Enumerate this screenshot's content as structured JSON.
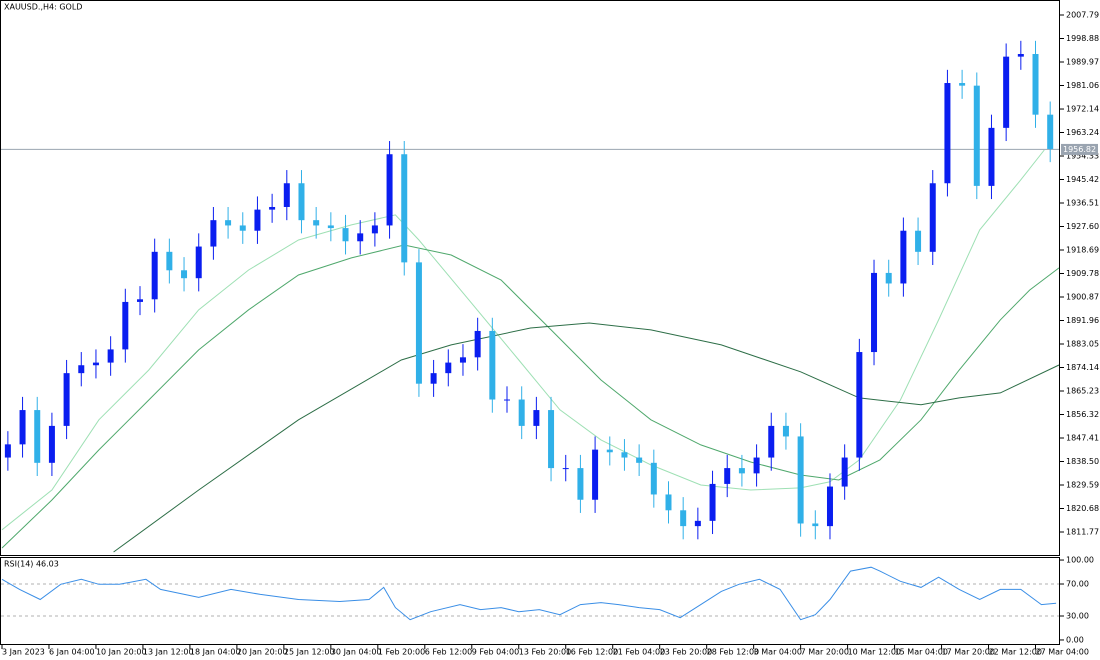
{
  "chart_data": {
    "type": "candlestick",
    "title": "XAUUSD.,H4: GOLD",
    "up_color": "#0a1ef0",
    "down_color": "#30b0e8",
    "x": [
      2,
      7,
      12,
      17,
      22,
      27,
      32,
      37,
      42,
      47,
      52,
      57,
      62,
      67,
      72,
      77,
      82,
      87,
      92,
      97,
      102,
      107,
      112,
      117,
      122,
      127,
      132,
      137,
      142,
      147,
      152,
      157,
      162,
      167,
      172,
      177,
      182,
      187,
      192,
      197,
      202,
      207,
      212,
      217,
      222,
      227,
      232,
      237,
      242,
      247,
      252,
      257,
      262,
      267,
      272,
      277,
      282,
      287,
      292,
      297,
      302,
      307,
      312,
      317,
      322,
      327,
      332,
      337,
      342,
      347,
      352,
      357
    ],
    "open": [
      1840,
      1845,
      1858,
      1838,
      1852,
      1872,
      1875,
      1876,
      1881,
      1899,
      1900,
      1918,
      1911,
      1908,
      1920,
      1930,
      1928,
      1926,
      1934,
      1935,
      1944,
      1930,
      1928,
      1927,
      1922,
      1925,
      1928,
      1955,
      1914,
      1868,
      1872,
      1876,
      1878,
      1888,
      1862,
      1862,
      1852,
      1858,
      1836,
      1836,
      1824,
      1843,
      1842,
      1840,
      1838,
      1826,
      1820,
      1814,
      1816,
      1830,
      1836,
      1834,
      1840,
      1852,
      1848,
      1815,
      1814,
      1829,
      1840,
      1880,
      1910,
      1906,
      1926,
      1918,
      1944,
      1982,
      1981,
      1943,
      1965,
      1992,
      1993,
      1970
    ],
    "high": [
      1850,
      1863,
      1863,
      1857,
      1877,
      1880,
      1881,
      1886,
      1904,
      1905,
      1923,
      1923,
      1916,
      1925,
      1935,
      1935,
      1933,
      1939,
      1940,
      1949,
      1949,
      1935,
      1933,
      1932,
      1930,
      1933,
      1960,
      1960,
      1919,
      1877,
      1881,
      1883,
      1893,
      1893,
      1867,
      1867,
      1863,
      1863,
      1841,
      1841,
      1848,
      1848,
      1847,
      1845,
      1843,
      1831,
      1825,
      1821,
      1835,
      1841,
      1841,
      1845,
      1857,
      1857,
      1853,
      1820,
      1834,
      1845,
      1885,
      1915,
      1915,
      1931,
      1931,
      1949,
      1987,
      1987,
      1986,
      1970,
      1997,
      1998,
      1998,
      1975
    ],
    "low": [
      1835,
      1840,
      1833,
      1833,
      1847,
      1867,
      1870,
      1871,
      1876,
      1894,
      1895,
      1906,
      1903,
      1903,
      1915,
      1923,
      1921,
      1921,
      1929,
      1930,
      1925,
      1923,
      1922,
      1917,
      1917,
      1920,
      1923,
      1909,
      1863,
      1863,
      1867,
      1871,
      1873,
      1857,
      1857,
      1847,
      1847,
      1831,
      1831,
      1819,
      1819,
      1837,
      1835,
      1833,
      1821,
      1815,
      1809,
      1809,
      1811,
      1825,
      1829,
      1829,
      1835,
      1843,
      1810,
      1809,
      1809,
      1824,
      1835,
      1875,
      1901,
      1901,
      1913,
      1913,
      1939,
      1976,
      1938,
      1938,
      1960,
      1987,
      1965,
      1952
    ],
    "close": [
      1845,
      1858,
      1838,
      1852,
      1872,
      1875,
      1876,
      1881,
      1899,
      1900,
      1918,
      1911,
      1908,
      1920,
      1930,
      1928,
      1926,
      1934,
      1935,
      1944,
      1930,
      1928,
      1927,
      1922,
      1925,
      1928,
      1955,
      1914,
      1868,
      1872,
      1876,
      1878,
      1888,
      1862,
      1862,
      1852,
      1858,
      1836,
      1836,
      1824,
      1843,
      1842,
      1840,
      1838,
      1826,
      1820,
      1814,
      1816,
      1830,
      1836,
      1834,
      1840,
      1852,
      1848,
      1815,
      1814,
      1829,
      1840,
      1880,
      1910,
      1906,
      1926,
      1918,
      1944,
      1982,
      1981,
      1943,
      1965,
      1992,
      1993,
      1970,
      1957
    ],
    "moving_averages": [
      {
        "color": "#9ee0b4",
        "x": [
          0,
          17,
          33,
          50,
          67,
          84,
          101,
          119,
          134,
          142,
          159,
          176,
          190,
          204,
          221,
          238,
          255,
          272,
          282,
          292,
          306,
          319,
          333,
          347,
          355
        ],
        "values": [
          1812.6,
          1827.7,
          1854.3,
          1873.2,
          1896.0,
          1911.1,
          1922.5,
          1928.2,
          1932.0,
          1922.5,
          1899.8,
          1877.0,
          1858.1,
          1846.7,
          1837.2,
          1829.6,
          1827.7,
          1828.5,
          1830.8,
          1839.1,
          1861.8,
          1892.2,
          1926.3,
          1945.3,
          1956.6
        ]
      },
      {
        "color": "#4fa86c",
        "x": [
          0,
          17,
          33,
          50,
          67,
          84,
          101,
          119,
          137,
          153,
          170,
          187,
          204,
          221,
          238,
          255,
          272,
          285,
          299,
          313,
          326,
          340,
          350,
          360
        ],
        "values": [
          1805.7,
          1823.9,
          1842.9,
          1861.8,
          1880.8,
          1896.0,
          1909.2,
          1915.7,
          1920.6,
          1916.8,
          1907.3,
          1888.4,
          1869.4,
          1854.3,
          1844.8,
          1838.3,
          1833.4,
          1831.5,
          1839.1,
          1854.3,
          1873.2,
          1892.2,
          1903.5,
          1911.9
        ]
      },
      {
        "color": "#2d6e47",
        "x": [
          38,
          67,
          101,
          136,
          153,
          180,
          200,
          221,
          245,
          272,
          292,
          313,
          326,
          340,
          360
        ],
        "values": [
          1804.2,
          1827.7,
          1854.3,
          1877.0,
          1882.7,
          1889.1,
          1891.0,
          1888.4,
          1882.7,
          1872.5,
          1862.6,
          1860.0,
          1862.6,
          1864.5,
          1875.1
        ]
      }
    ],
    "current_price": 1956.82,
    "xlim": [
      0,
      360
    ],
    "ylim": [
      1803.05,
      2012.72
    ],
    "yticks": [
      2007.79,
      1998.88,
      1989.97,
      1981.06,
      1972.14,
      1963.24,
      1954.33,
      1945.42,
      1936.51,
      {
        "value": 1927.6,
        "label": "1927.60"
      },
      1918.69,
      1909.78,
      1900.87,
      1891.96,
      1883.05,
      1874.14,
      1865.23,
      1856.32,
      1847.41,
      {
        "value": 1838.5,
        "label": "1838.50"
      },
      1829.59,
      1820.68,
      1811.77
    ],
    "xticks": [
      {
        "value": 0,
        "label": "3 Jan 2023"
      },
      {
        "value": 16,
        "label": "6 Jan 04:00"
      },
      {
        "value": 32,
        "label": "10 Jan 20:00"
      },
      {
        "value": 48,
        "label": "13 Jan 12:00"
      },
      {
        "value": 64,
        "label": "18 Jan 04:00"
      },
      {
        "value": 80,
        "label": "20 Jan 20:00"
      },
      {
        "value": 96,
        "label": "25 Jan 12:00"
      },
      {
        "value": 112,
        "label": "30 Jan 04:00"
      },
      {
        "value": 128,
        "label": "1 Feb 20:00"
      },
      {
        "value": 144,
        "label": "6 Feb 12:00"
      },
      {
        "value": 160,
        "label": "9 Feb 04:00"
      },
      {
        "value": 176,
        "label": "13 Feb 20:00"
      },
      {
        "value": 192,
        "label": "16 Feb 12:00"
      },
      {
        "value": 208,
        "label": "21 Feb 04:00"
      },
      {
        "value": 224,
        "label": "23 Feb 20:00"
      },
      {
        "value": 240,
        "label": "28 Feb 12:00"
      },
      {
        "value": 256,
        "label": "3 Mar 04:00"
      },
      {
        "value": 272,
        "label": "7 Mar 20:00"
      },
      {
        "value": 288,
        "label": "10 Mar 12:00"
      },
      {
        "value": 304,
        "label": "15 Mar 04:00"
      },
      {
        "value": 320,
        "label": "17 Mar 20:00"
      },
      {
        "value": 336,
        "label": "22 Mar 12:00"
      },
      {
        "value": 352,
        "label": "27 Mar 04:00"
      }
    ],
    "indicator": {
      "type": "line",
      "title": "RSI(14) 46.03",
      "color": "#3a8ee6",
      "x": [
        0,
        6,
        13,
        20,
        27,
        33,
        40,
        49,
        54,
        67,
        78,
        88,
        101,
        115,
        125,
        130,
        134,
        139,
        146,
        156,
        163,
        170,
        176,
        183,
        190,
        197,
        204,
        210,
        217,
        224,
        231,
        238,
        245,
        251,
        258,
        265,
        272,
        277,
        282,
        289,
        296,
        299,
        306,
        313,
        319,
        326,
        333,
        340,
        347,
        354,
        359
      ],
      "values": [
        75.9,
        63.3,
        50.6,
        69.6,
        75.9,
        69.6,
        69.6,
        75.9,
        63.3,
        53.2,
        63.3,
        57.0,
        50.6,
        48.1,
        50.6,
        65.8,
        40.5,
        25.3,
        35.4,
        44.3,
        38.0,
        40.5,
        35.4,
        38.0,
        31.6,
        44.3,
        46.8,
        44.3,
        40.5,
        38.0,
        27.8,
        44.3,
        60.8,
        69.6,
        75.9,
        63.3,
        25.3,
        31.6,
        50.6,
        86.1,
        91.1,
        86.1,
        73.4,
        65.8,
        78.5,
        63.3,
        50.6,
        63.3,
        63.3,
        44.3,
        46.03
      ],
      "levels": [
        70,
        30
      ],
      "ylim": [
        -6.3,
        103.8
      ],
      "yticks": [
        {
          "value": 100,
          "label": "100.00"
        },
        {
          "value": 70,
          "label": "70.00"
        },
        {
          "value": 30,
          "label": "30.00"
        },
        {
          "value": 0,
          "label": "0.00"
        }
      ]
    }
  }
}
